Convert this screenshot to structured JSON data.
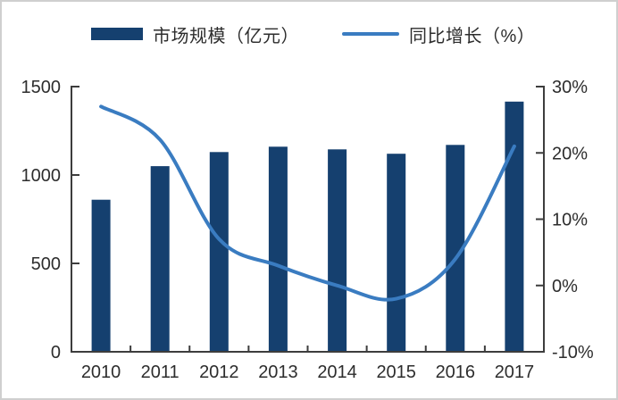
{
  "chart_data": {
    "type": "bar+line",
    "title": "",
    "categories": [
      "2010",
      "2011",
      "2012",
      "2013",
      "2014",
      "2015",
      "2016",
      "2017"
    ],
    "series": [
      {
        "name": "市场规模（亿元）",
        "type": "bar",
        "axis": "left",
        "color": "#15406f",
        "values": [
          860,
          1050,
          1130,
          1160,
          1145,
          1120,
          1170,
          1415
        ]
      },
      {
        "name": "同比增长（%）",
        "type": "line",
        "axis": "right",
        "color": "#3a7cc1",
        "values": [
          27,
          22,
          7,
          3,
          0,
          -2,
          4,
          21
        ]
      }
    ],
    "left_axis": {
      "range": [
        0,
        1500
      ],
      "tick_values": [
        0,
        500,
        1000,
        1500
      ],
      "tick_labels": [
        "0",
        "500",
        "1000",
        "1500"
      ]
    },
    "right_axis": {
      "range": [
        -10,
        30
      ],
      "tick_values": [
        -10,
        0,
        10,
        20,
        30
      ],
      "tick_labels": [
        "-10%",
        "0%",
        "10%",
        "20%",
        "30%"
      ]
    },
    "legend_position": "top",
    "grid": false
  },
  "style": {
    "axis_color": "#3d3d3d",
    "label_color": "#2d2d2d",
    "frame_border_color": "#cfcfcf",
    "background": "#ffffff"
  }
}
